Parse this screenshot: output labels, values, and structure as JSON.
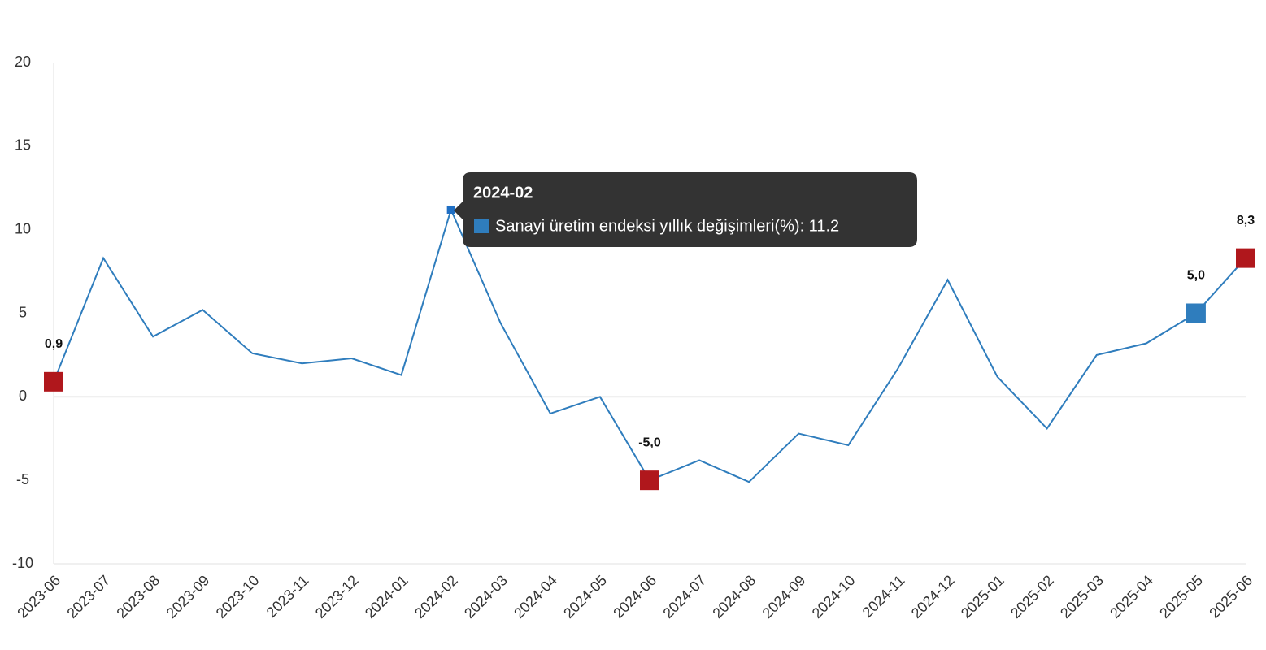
{
  "chart_data": {
    "type": "line",
    "categories": [
      "2023-06",
      "2023-07",
      "2023-08",
      "2023-09",
      "2023-10",
      "2023-11",
      "2023-12",
      "2024-01",
      "2024-02",
      "2024-03",
      "2024-04",
      "2024-05",
      "2024-06",
      "2024-07",
      "2024-08",
      "2024-09",
      "2024-10",
      "2024-11",
      "2024-12",
      "2025-01",
      "2025-02",
      "2025-03",
      "2025-04",
      "2025-05",
      "2025-06"
    ],
    "values": [
      0.9,
      8.3,
      3.6,
      5.2,
      2.6,
      2.0,
      2.3,
      1.3,
      11.2,
      4.4,
      -1.0,
      0.0,
      -5.0,
      -3.8,
      -5.1,
      -2.2,
      -2.9,
      1.7,
      7.0,
      1.2,
      -1.9,
      2.5,
      3.2,
      5.0,
      8.3
    ],
    "value_labels": [
      "0,9",
      null,
      null,
      null,
      null,
      null,
      null,
      null,
      null,
      null,
      null,
      null,
      "-5,0",
      null,
      null,
      null,
      null,
      null,
      null,
      null,
      null,
      null,
      null,
      "5,0",
      "8,3"
    ],
    "marker_colors": [
      "#b0171c",
      null,
      null,
      null,
      null,
      null,
      null,
      null,
      null,
      null,
      null,
      null,
      "#b0171c",
      null,
      null,
      null,
      null,
      null,
      null,
      null,
      null,
      null,
      null,
      "#2f7dbd",
      "#b0171c"
    ],
    "color": "#2f7dbd",
    "ylim": [
      -10,
      20
    ],
    "yticks": [
      -10,
      -5,
      0,
      5,
      10,
      15,
      20
    ],
    "tooltip": {
      "title": "2024-02",
      "text": "Sanayi üretim endeksi yıllık değişimleri(%): 11.2"
    }
  }
}
